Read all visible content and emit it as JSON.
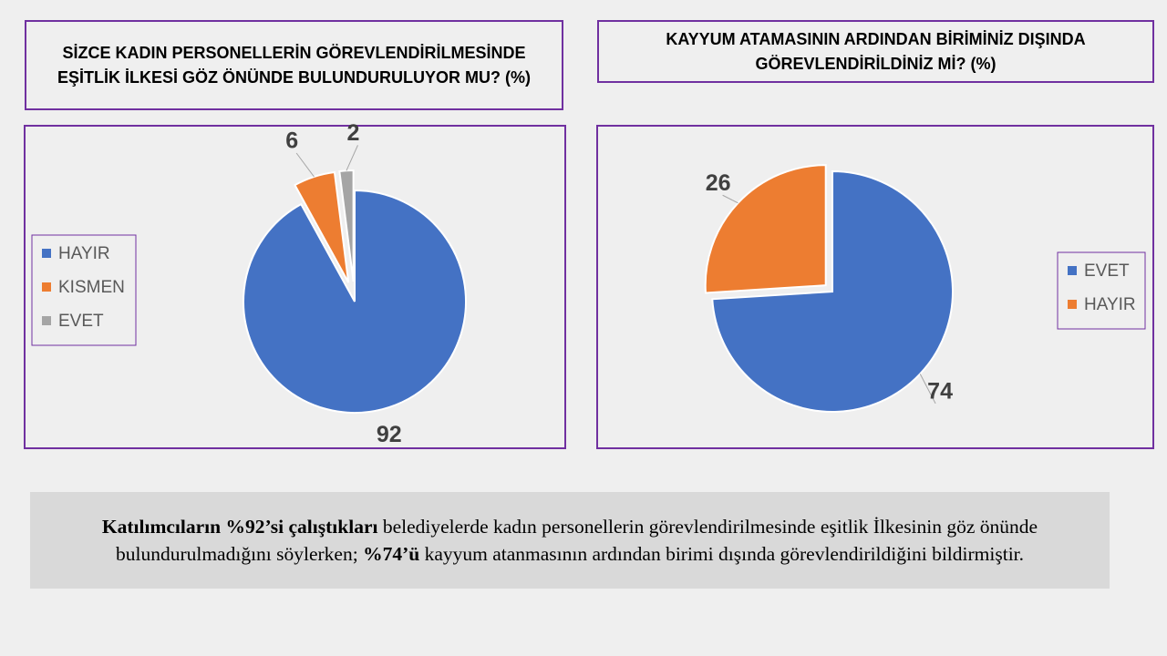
{
  "chart_data": [
    {
      "type": "pie",
      "title": "SİZCE KADIN PERSONELLERİN GÖREVLENDİRİLMESİNDE EŞİTLİK İLKESİ GÖZ ÖNÜNDE BULUNDURULUYOR MU? (%)",
      "categories": [
        "HAYIR",
        "KISMEN",
        "EVET"
      ],
      "values": [
        92,
        6,
        2
      ],
      "colors": [
        "#4472c4",
        "#ed7d31",
        "#a5a5a5"
      ],
      "legend": "left"
    },
    {
      "type": "pie",
      "title": "KAYYUM ATAMASININ ARDINDAN BİRİMİNİZ DIŞINDA GÖREVLENDİRİLDİNİZ Mİ? (%)",
      "categories": [
        "EVET",
        "HAYIR"
      ],
      "values": [
        74,
        26
      ],
      "colors": [
        "#4472c4",
        "#ed7d31"
      ],
      "legend": "right"
    }
  ],
  "summary": {
    "runs": [
      {
        "text": "Katılımcıların %92’si çalıştıkları",
        "bold": true
      },
      {
        "text": " belediyelerde kadın personellerin görevlendirilmesinde eşitlik İlkesinin göz önünde bulundurulmadığını söylerken; ",
        "bold": false
      },
      {
        "text": "%74’ü",
        "bold": true
      },
      {
        "text": " kayyum atanmasının ardından birimi dışında görevlendirildiğini bildirmiştir.",
        "bold": false
      }
    ]
  }
}
